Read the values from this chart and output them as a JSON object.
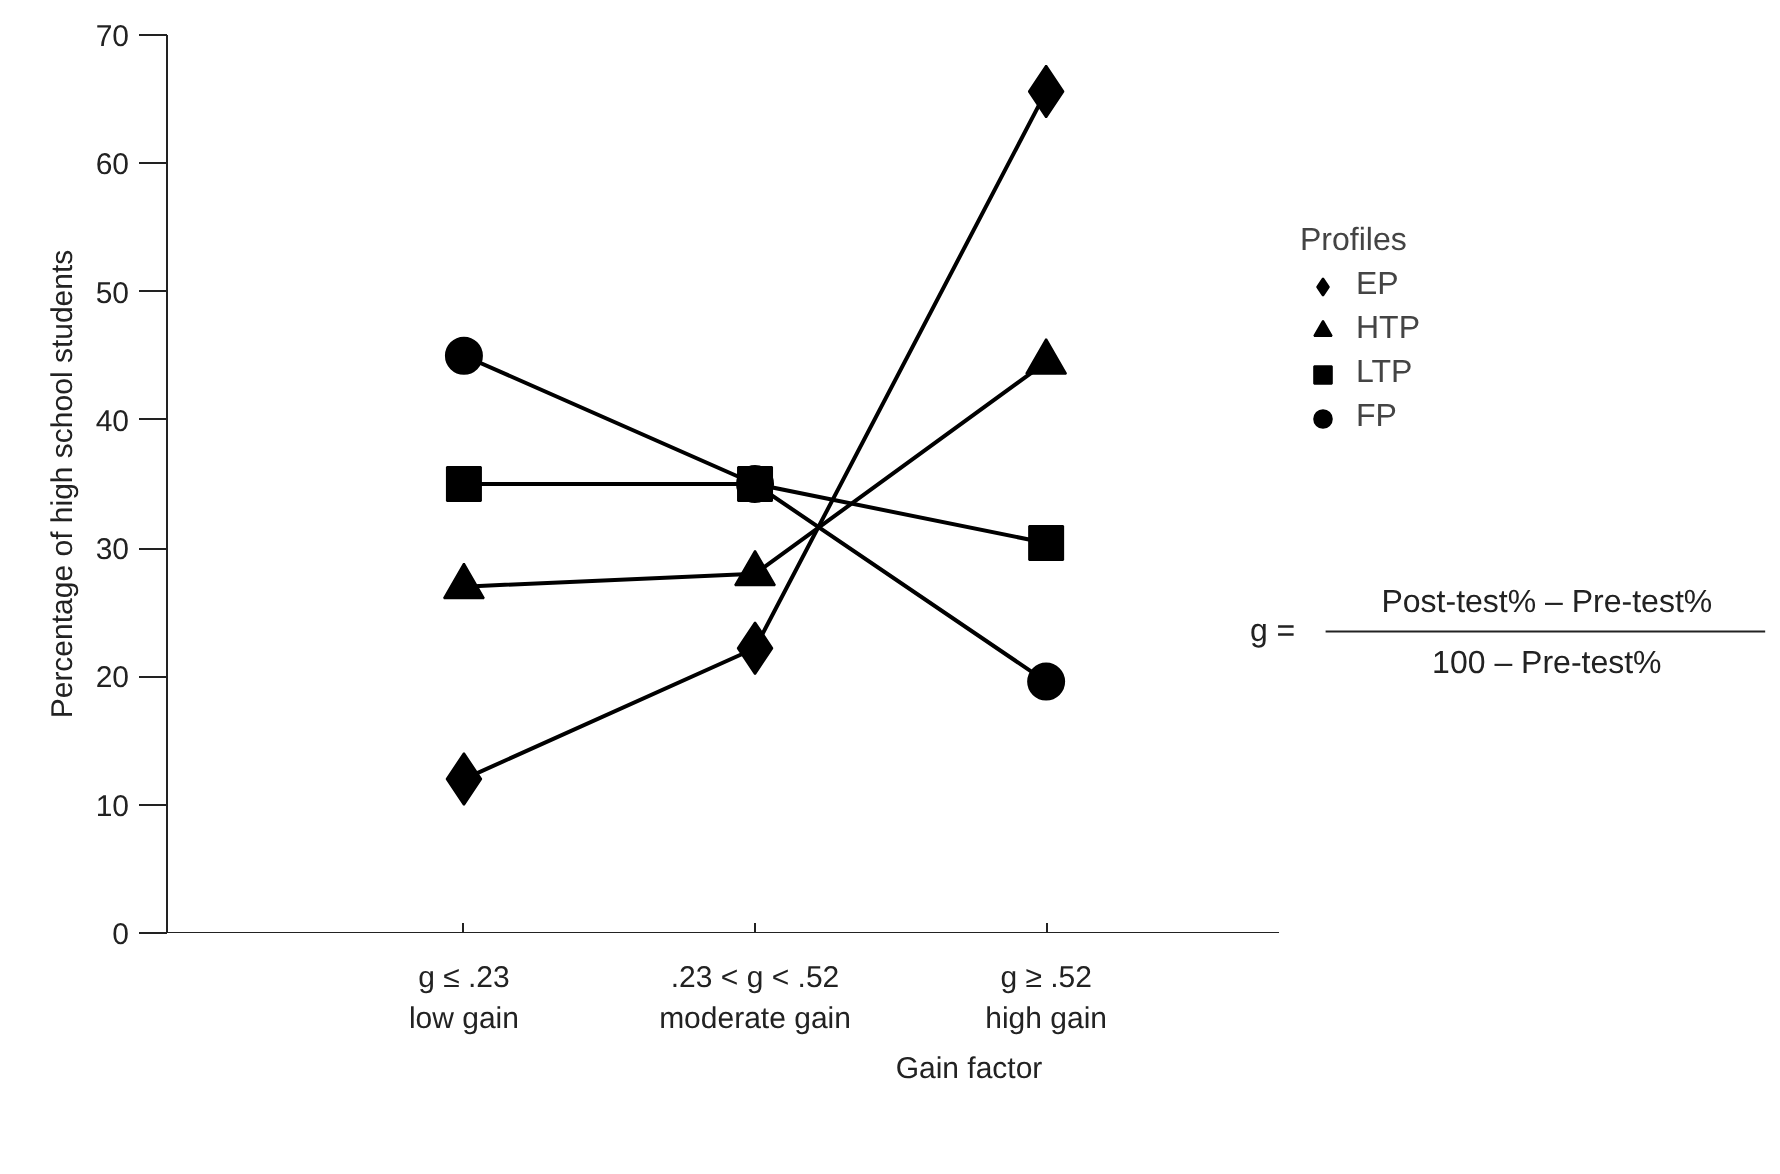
{
  "chart_data": {
    "type": "line",
    "xlabel": "Gain factor",
    "ylabel": "Percentage of high school students",
    "legend_title": "Profiles",
    "legend": "right",
    "categories": [
      "g ≤ .23\nlow gain",
      ".23 < g < .52\nmoderate gain",
      "g ≥ .52\nhigh gain"
    ],
    "ylim": [
      0,
      70
    ],
    "yticks": [
      0,
      10,
      20,
      30,
      40,
      50,
      60,
      70
    ],
    "grid": false,
    "line_style": "solid",
    "series": [
      {
        "name": "EP",
        "color": "#000000",
        "marker": "diamond",
        "values": [
          12,
          22.2,
          65.6
        ]
      },
      {
        "name": "HTP",
        "color": "#000000",
        "marker": "triangle",
        "values": [
          27,
          28,
          44.5
        ]
      },
      {
        "name": "LTP",
        "color": "#000000",
        "marker": "square",
        "values": [
          35,
          35,
          30.4
        ]
      },
      {
        "name": "FP",
        "color": "#000000",
        "marker": "circle",
        "values": [
          45,
          35,
          19.6
        ]
      }
    ],
    "annotations": [
      "g =",
      "Post-test% – Pre-test%",
      "100 – Pre-test%"
    ]
  }
}
